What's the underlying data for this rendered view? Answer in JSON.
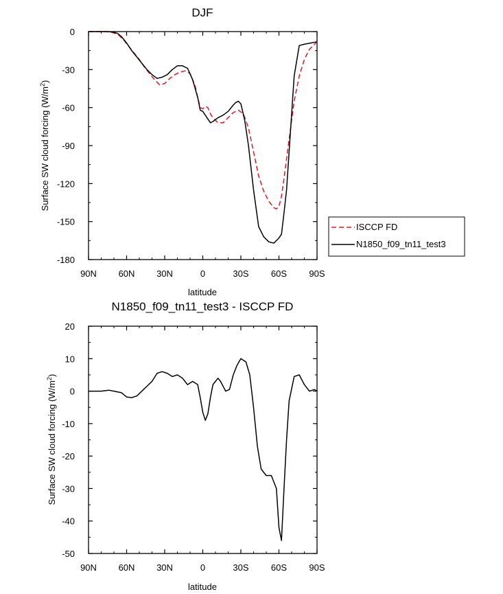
{
  "chart_data": [
    {
      "type": "line",
      "title": "DJF",
      "xlabel": "latitude",
      "ylabel": "Surface SW cloud forcing (W/m",
      "ylabel_sup": "2",
      "ylabel_close": ")",
      "xlim": [
        90,
        -90
      ],
      "ylim": [
        -180,
        0
      ],
      "x_ticks": [
        90,
        60,
        30,
        0,
        -30,
        -60,
        -90
      ],
      "x_tick_labels": [
        "90N",
        "60N",
        "30N",
        "0",
        "30S",
        "60S",
        "90S"
      ],
      "y_ticks": [
        0,
        -30,
        -60,
        -90,
        -120,
        -150,
        -180
      ],
      "y_tick_labels": [
        "0",
        "-30",
        "-60",
        "-90",
        "-120",
        "-150",
        "-180"
      ],
      "legend": {
        "placement": "right-outside"
      },
      "series": [
        {
          "name": "ISCCP FD",
          "color": "#e8141e",
          "style": "dashed",
          "x": [
            90,
            80,
            75,
            70,
            66,
            62,
            58,
            54,
            50,
            46,
            42,
            38,
            34,
            30,
            26,
            22,
            18,
            14,
            10,
            6,
            4,
            2,
            0,
            -2,
            -4,
            -6,
            -8,
            -12,
            -16,
            -20,
            -24,
            -28,
            -32,
            -36,
            -40,
            -44,
            -48,
            -52,
            -56,
            -58,
            -60,
            -62,
            -64,
            -68,
            -72,
            -76,
            -80,
            -84,
            -90
          ],
          "y": [
            0,
            0,
            -0.2,
            -1,
            -3,
            -7,
            -12,
            -17,
            -22,
            -28,
            -33,
            -38,
            -42,
            -41,
            -37,
            -34,
            -32,
            -31,
            -33,
            -43,
            -52,
            -60,
            -61,
            -59,
            -60,
            -65,
            -68,
            -72,
            -72,
            -68,
            -64,
            -62,
            -65,
            -76,
            -95,
            -114,
            -126,
            -134,
            -139,
            -140,
            -138,
            -130,
            -116,
            -85,
            -55,
            -35,
            -22,
            -14,
            -8
          ]
        },
        {
          "name": "N1850_f09_tn11_test3",
          "color": "#000000",
          "style": "solid",
          "x": [
            90,
            80,
            75,
            70,
            67,
            64,
            60,
            56,
            52,
            48,
            44,
            40,
            36,
            32,
            28,
            24,
            20,
            16,
            12,
            8,
            4,
            2,
            0,
            -2,
            -4,
            -6,
            -8,
            -12,
            -16,
            -20,
            -24,
            -26,
            -28,
            -30,
            -33,
            -36,
            -40,
            -44,
            -48,
            -52,
            -56,
            -58,
            -60,
            -62,
            -64,
            -66,
            -68,
            -72,
            -76,
            -80,
            -85,
            -90
          ],
          "y": [
            0,
            0,
            0,
            -0.5,
            -1.5,
            -4,
            -9,
            -15,
            -20,
            -25,
            -30,
            -34,
            -37,
            -36,
            -34,
            -30,
            -27,
            -27,
            -29,
            -38,
            -52,
            -62,
            -63,
            -66,
            -69,
            -72,
            -71,
            -68,
            -66,
            -63,
            -58,
            -56,
            -55,
            -57,
            -70,
            -90,
            -125,
            -154,
            -162,
            -166,
            -167,
            -165,
            -163,
            -160,
            -143,
            -125,
            -95,
            -35,
            -11,
            -10,
            -9,
            -8
          ]
        }
      ]
    },
    {
      "type": "line",
      "title": "N1850_f09_tn11_test3 - ISCCP FD",
      "xlabel": "latitude",
      "ylabel": "Surface SW cloud forcing (W/m",
      "ylabel_sup": "2",
      "ylabel_close": ")",
      "xlim": [
        90,
        -90
      ],
      "ylim": [
        -50,
        20
      ],
      "x_ticks": [
        90,
        60,
        30,
        0,
        -30,
        -60,
        -90
      ],
      "x_tick_labels": [
        "90N",
        "60N",
        "30N",
        "0",
        "30S",
        "60S",
        "90S"
      ],
      "y_ticks": [
        20,
        10,
        0,
        -10,
        -20,
        -30,
        -40,
        -50
      ],
      "y_tick_labels": [
        "20",
        "10",
        "0",
        "-10",
        "-20",
        "-30",
        "-40",
        "-50"
      ],
      "series": [
        {
          "color": "#000000",
          "style": "solid",
          "x": [
            90,
            80,
            74,
            70,
            64,
            60,
            56,
            52,
            48,
            44,
            40,
            36,
            32,
            28,
            24,
            20,
            16,
            12,
            8,
            4,
            2,
            0,
            -2,
            -4,
            -6,
            -8,
            -12,
            -14,
            -18,
            -21,
            -24,
            -27,
            -30,
            -34,
            -37,
            -40,
            -43,
            -46,
            -50,
            -54,
            -56,
            -58,
            -60,
            -62,
            -64,
            -66,
            -68,
            -72,
            -76,
            -80,
            -84,
            -88,
            -90
          ],
          "y": [
            0,
            0,
            0.3,
            0,
            -0.5,
            -1.8,
            -2,
            -1.5,
            0,
            1.5,
            3,
            5.5,
            6,
            5.5,
            4.5,
            5,
            4,
            2,
            3,
            2,
            -2,
            -6.5,
            -9,
            -7,
            -2,
            2,
            4,
            3,
            0,
            0.5,
            5,
            8,
            10,
            9,
            5,
            -5,
            -17,
            -24,
            -26,
            -26,
            -28,
            -30,
            -42,
            -46,
            -30,
            -15,
            -3,
            4.5,
            5,
            2,
            0,
            0.5,
            0
          ]
        }
      ]
    }
  ]
}
